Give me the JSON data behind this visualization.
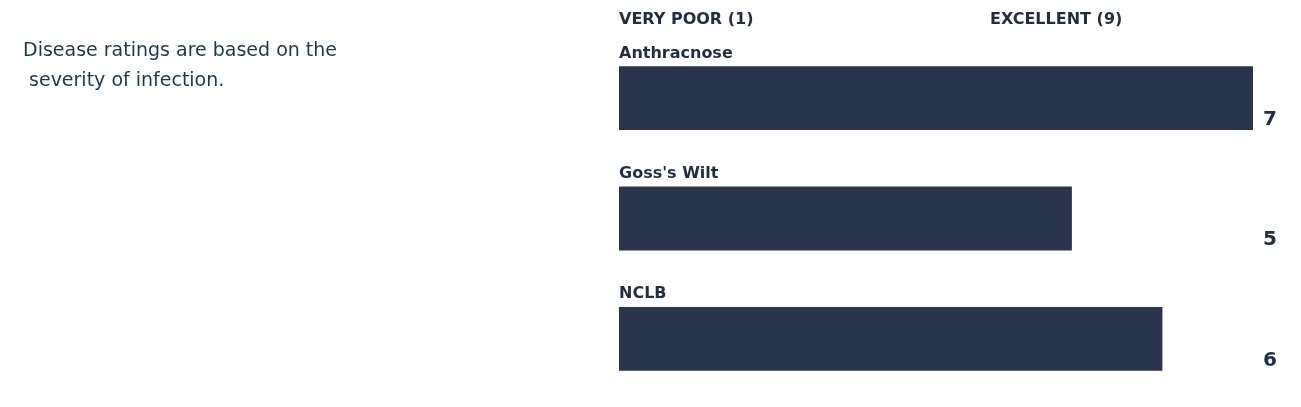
{
  "chart_data": {
    "type": "bar",
    "orientation": "horizontal",
    "categories": [
      "Anthracnose",
      "Goss's Wilt",
      "NCLB"
    ],
    "values": [
      7,
      5,
      6
    ],
    "color": "#2a344d",
    "tick_labels": "y",
    "data_labels": true,
    "annotations": [
      "Disease ratings are based on the severity of infection.",
      "VERY POOR (1)",
      "EXCELLENT (9)"
    ]
  }
}
